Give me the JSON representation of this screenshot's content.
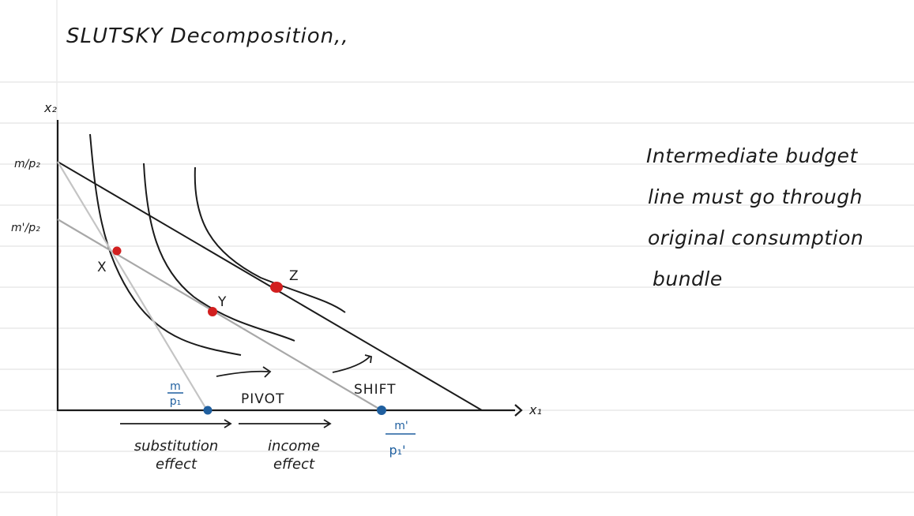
{
  "title": "SLUTSKY Decomposition,,",
  "note": {
    "lines": [
      "Intermediate budget",
      "line must go through",
      "original consumption",
      "bundle"
    ]
  },
  "axes": {
    "y_label": "x₂",
    "x_label": "x₁",
    "y_intercept_original": "m/p₂",
    "y_intercept_pivoted": "m'/p₂"
  },
  "intercepts": {
    "x_original_top": "m",
    "x_original_bottom": "p₁",
    "x_shifted_top": "m'",
    "x_shifted_bottom": "p₁'"
  },
  "points": {
    "x": "X",
    "y": "Y",
    "z": "Z"
  },
  "arrows": {
    "pivot": "PIVOT",
    "shift": "SHIFT"
  },
  "effects": {
    "substitution": [
      "substitution",
      "effect"
    ],
    "income": [
      "income",
      "effect"
    ]
  },
  "colors": {
    "ink": "#1b1b1b",
    "gray_line": "#a8a8a8",
    "red_point": "#d21f1f",
    "blue_point": "#1f5f9f",
    "rule_lines": "#e3e3e3",
    "margin_line": "#e9e9e9"
  }
}
